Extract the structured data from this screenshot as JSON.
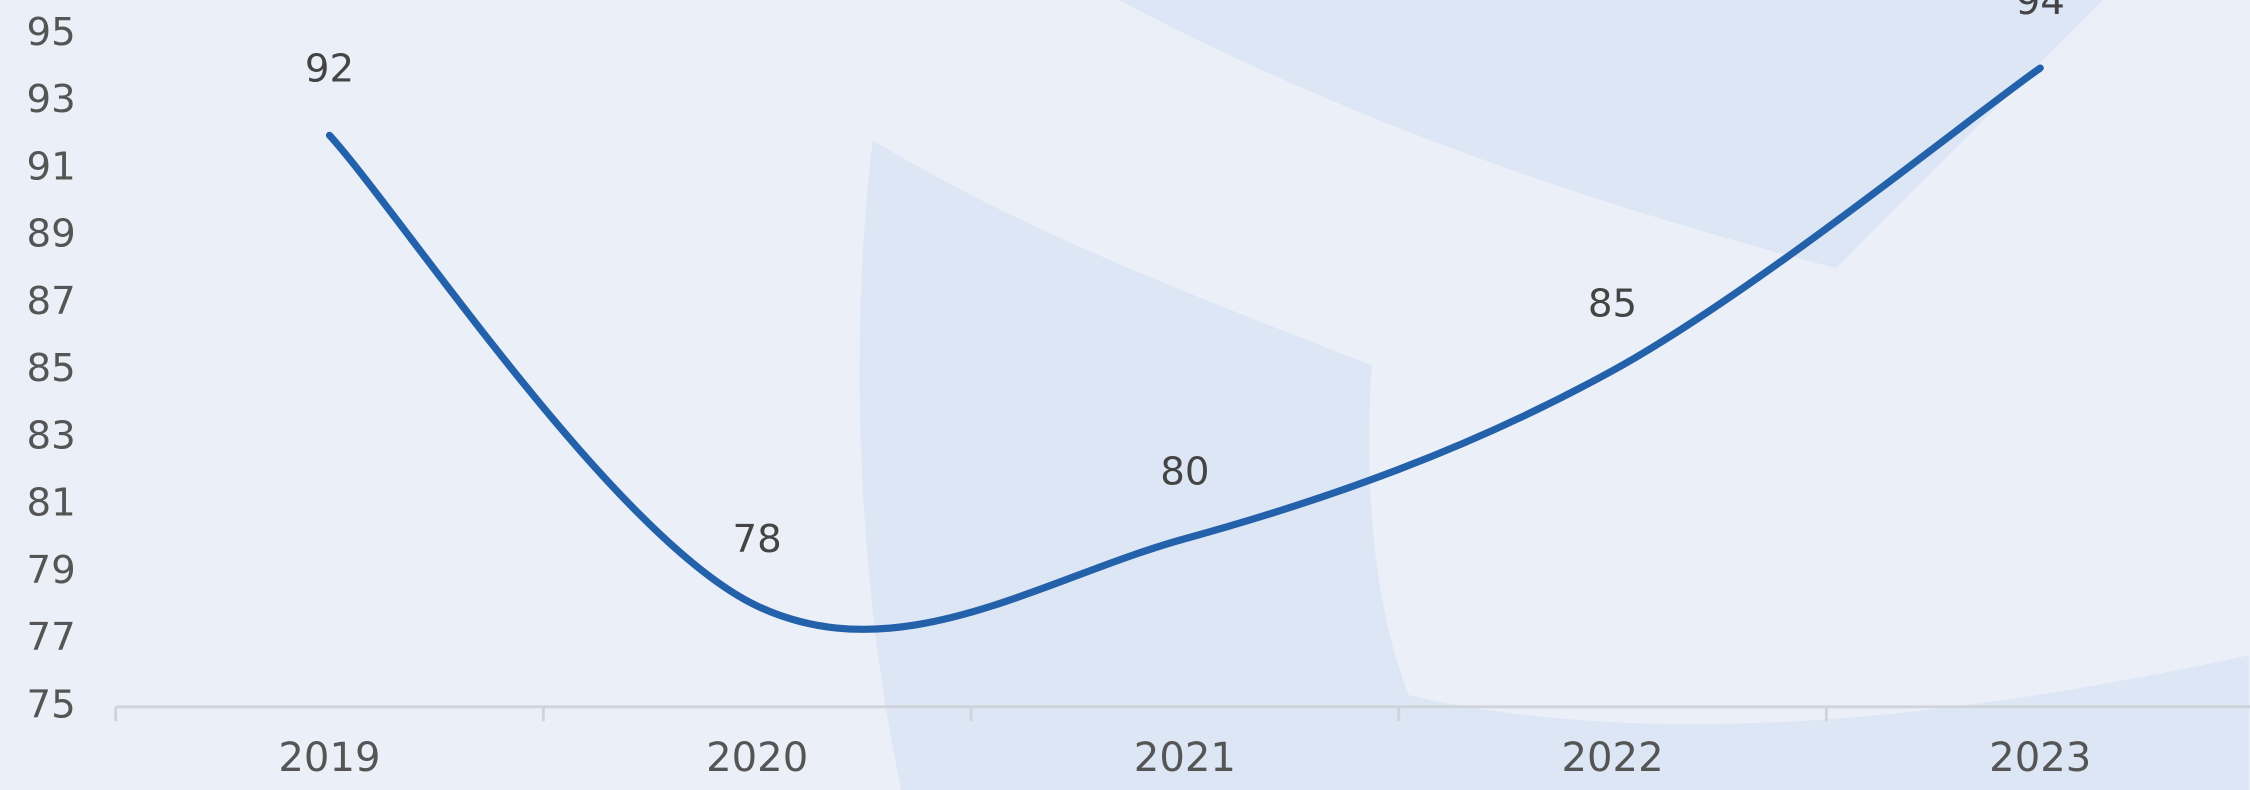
{
  "chart_data": {
    "type": "line",
    "categories": [
      "2019",
      "2020",
      "2021",
      "2022",
      "2023"
    ],
    "series": [
      {
        "color": "#2461ab",
        "values": [
          92,
          78,
          80,
          85,
          94
        ]
      }
    ],
    "ylim": [
      75,
      95
    ],
    "yticks": [
      75,
      77,
      79,
      81,
      83,
      85,
      87,
      89,
      91,
      93,
      95
    ],
    "smooth": true,
    "data_labels": true
  }
}
